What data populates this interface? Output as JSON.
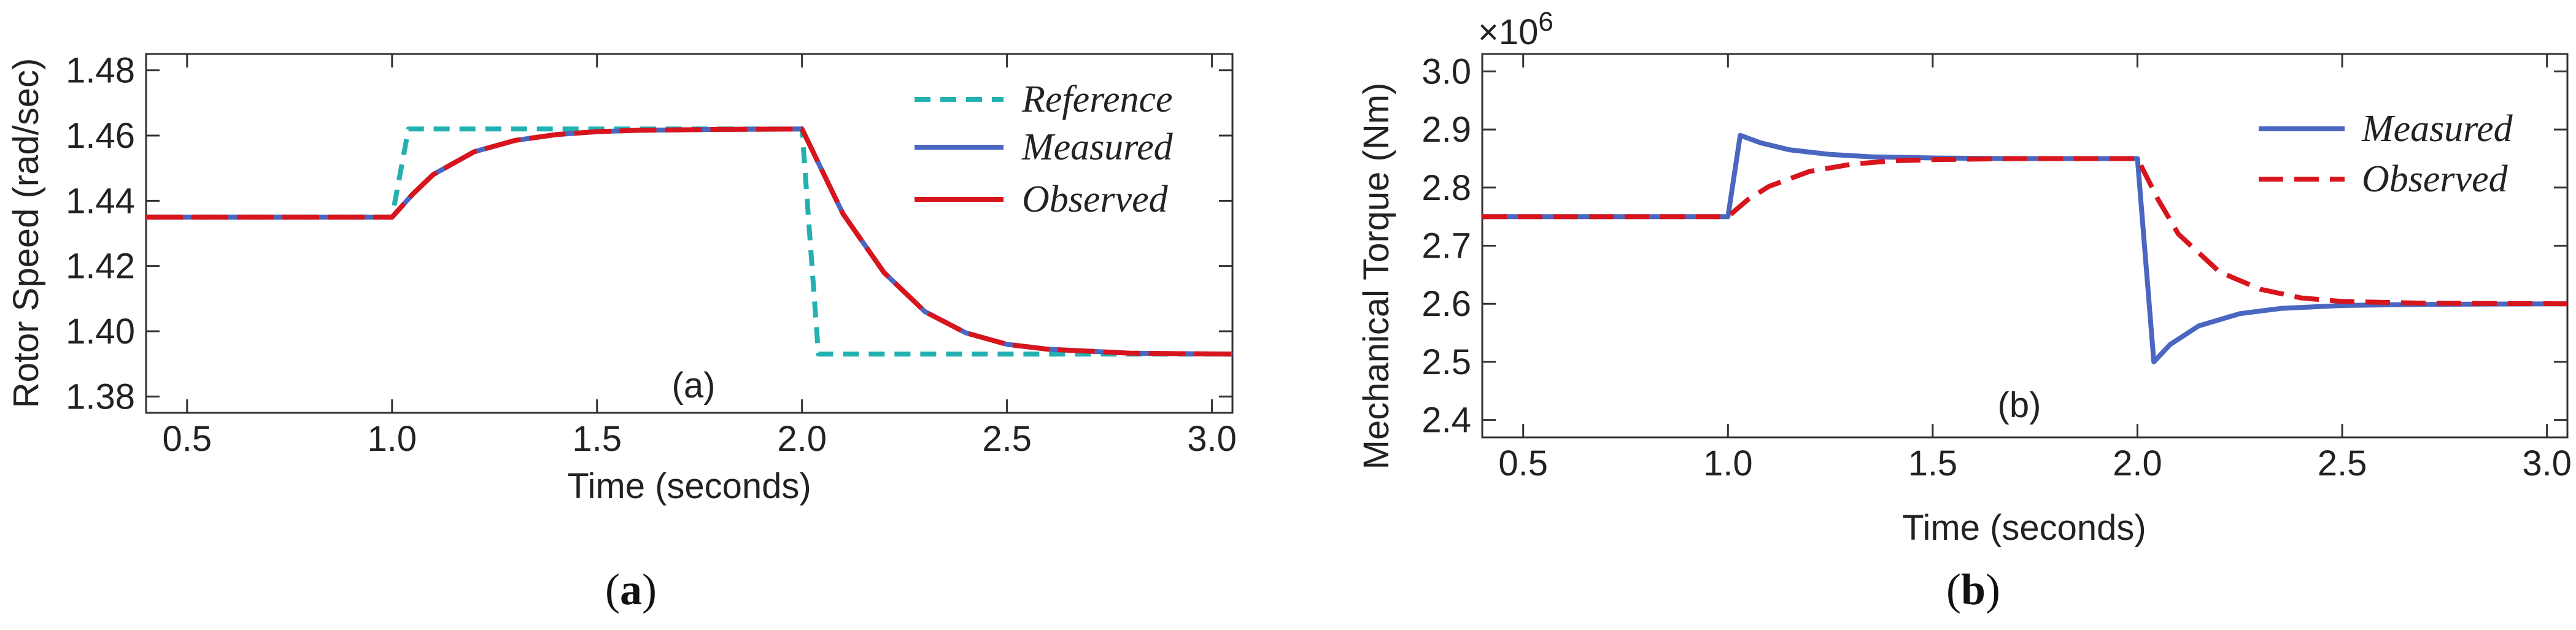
{
  "chart_data": [
    {
      "type": "line",
      "panel_tag": "(a)",
      "caption": {
        "open": "(",
        "letter": "a",
        "close": ")"
      },
      "xlabel": "Time (seconds)",
      "ylabel": "Rotor Speed (rad/sec)",
      "xlim": [
        0.4,
        3.05
      ],
      "ylim": [
        1.375,
        1.485
      ],
      "xticks": [
        0.5,
        1.0,
        1.5,
        2.0,
        2.5,
        3.0
      ],
      "xtick_labels": [
        "0.5",
        "1.0",
        "1.5",
        "2.0",
        "2.5",
        "3.0"
      ],
      "yticks": [
        1.38,
        1.4,
        1.42,
        1.44,
        1.46,
        1.48
      ],
      "ytick_labels": [
        "1.38",
        "1.40",
        "1.42",
        "1.44",
        "1.46",
        "1.48"
      ],
      "legend_position": "top-right",
      "series": [
        {
          "name": "Reference",
          "color": "#22b0b0",
          "style": "dashed",
          "x": [
            0.4,
            1.0,
            1.04,
            2.0,
            2.04,
            3.05
          ],
          "y": [
            1.435,
            1.435,
            1.462,
            1.462,
            1.393,
            1.393
          ]
        },
        {
          "name": "Measured",
          "color": "#4a66c0",
          "style": "solid",
          "x": [
            0.4,
            1.0,
            1.05,
            1.1,
            1.2,
            1.3,
            1.4,
            1.5,
            1.6,
            1.8,
            2.0,
            2.05,
            2.1,
            2.2,
            2.3,
            2.4,
            2.5,
            2.6,
            2.8,
            3.05
          ],
          "y": [
            1.435,
            1.435,
            1.442,
            1.448,
            1.455,
            1.4585,
            1.4603,
            1.4612,
            1.4616,
            1.4619,
            1.462,
            1.449,
            1.436,
            1.418,
            1.406,
            1.3995,
            1.396,
            1.3945,
            1.3933,
            1.393
          ]
        },
        {
          "name": "Observed",
          "color": "#d8141c",
          "style": "solid",
          "x": [
            0.4,
            1.0,
            1.05,
            1.1,
            1.2,
            1.3,
            1.4,
            1.5,
            1.6,
            1.8,
            2.0,
            2.05,
            2.1,
            2.2,
            2.3,
            2.4,
            2.5,
            2.6,
            2.8,
            3.05
          ],
          "y": [
            1.435,
            1.435,
            1.442,
            1.448,
            1.455,
            1.4585,
            1.4603,
            1.4612,
            1.4616,
            1.4619,
            1.462,
            1.449,
            1.436,
            1.418,
            1.406,
            1.3995,
            1.396,
            1.3945,
            1.3933,
            1.393
          ],
          "dash_overlay": true
        }
      ]
    },
    {
      "type": "line",
      "panel_tag": "(b)",
      "caption": {
        "open": "(",
        "letter": "b",
        "close": ")"
      },
      "xlabel": "Time (seconds)",
      "ylabel": "Mechanical Torque (Nm)",
      "multiplier": "×10",
      "multiplier_exp": "6",
      "xlim": [
        0.4,
        3.05
      ],
      "ylim": [
        2.37,
        3.03
      ],
      "xticks": [
        0.5,
        1.0,
        1.5,
        2.0,
        2.5,
        3.0
      ],
      "xtick_labels": [
        "0.5",
        "1.0",
        "1.5",
        "2.0",
        "2.5",
        "3.0"
      ],
      "yticks": [
        2.4,
        2.5,
        2.6,
        2.7,
        2.8,
        2.9,
        3.0
      ],
      "ytick_labels": [
        "2.4",
        "2.5",
        "2.6",
        "2.7",
        "2.8",
        "2.9",
        "3.0"
      ],
      "legend_position": "top-right",
      "series": [
        {
          "name": "Measured",
          "color": "#4a66c0",
          "style": "solid",
          "x": [
            0.4,
            1.0,
            1.03,
            1.08,
            1.15,
            1.25,
            1.35,
            1.5,
            1.7,
            2.0,
            2.04,
            2.08,
            2.15,
            2.25,
            2.35,
            2.5,
            2.7,
            3.05
          ],
          "y": [
            2.75,
            2.75,
            2.89,
            2.877,
            2.865,
            2.857,
            2.853,
            2.851,
            2.85,
            2.85,
            2.5,
            2.53,
            2.562,
            2.583,
            2.592,
            2.597,
            2.599,
            2.6
          ]
        },
        {
          "name": "Observed",
          "color": "#d8141c",
          "style": "dashed",
          "x": [
            0.4,
            1.0,
            1.05,
            1.1,
            1.2,
            1.3,
            1.4,
            1.5,
            1.7,
            2.0,
            2.05,
            2.1,
            2.2,
            2.3,
            2.4,
            2.5,
            2.7,
            3.05
          ],
          "y": [
            2.75,
            2.75,
            2.78,
            2.802,
            2.828,
            2.84,
            2.846,
            2.848,
            2.85,
            2.85,
            2.78,
            2.72,
            2.655,
            2.625,
            2.61,
            2.604,
            2.601,
            2.6
          ]
        }
      ]
    }
  ]
}
